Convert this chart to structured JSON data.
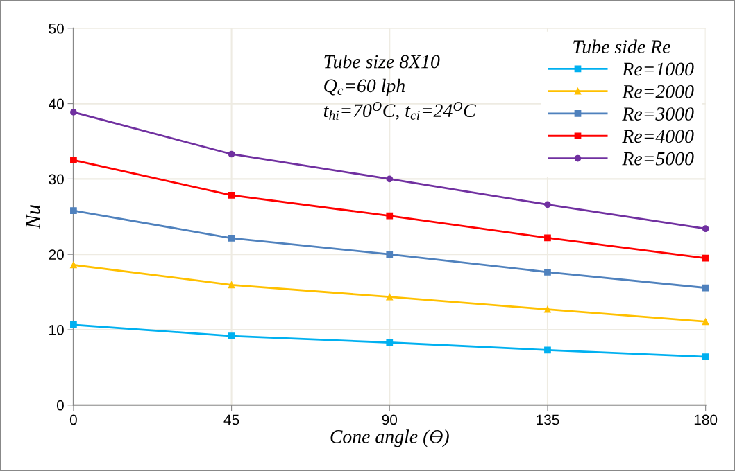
{
  "chart_data": {
    "type": "line",
    "xlabel": "Cone angle (Ө)",
    "ylabel": "Nu",
    "legend_title": "Tube side Re",
    "x": [
      0,
      45,
      90,
      135,
      180
    ],
    "series": [
      {
        "name": "Re=1000",
        "color": "#00b0f0",
        "marker": "square",
        "values": [
          10.65,
          9.17,
          8.3,
          7.3,
          6.4
        ]
      },
      {
        "name": "Re=2000",
        "color": "#ffc000",
        "marker": "triangle",
        "values": [
          18.6,
          15.95,
          14.35,
          12.7,
          11.07
        ]
      },
      {
        "name": "Re=3000",
        "color": "#4f81bd",
        "marker": "square",
        "values": [
          25.8,
          22.15,
          20.0,
          17.65,
          15.55
        ]
      },
      {
        "name": "Re=4000",
        "color": "#ff0000",
        "marker": "square",
        "values": [
          32.5,
          27.85,
          25.1,
          22.2,
          19.5
        ]
      },
      {
        "name": "Re=5000",
        "color": "#7030a0",
        "marker": "circle",
        "values": [
          38.87,
          33.3,
          30.0,
          26.6,
          23.4
        ]
      }
    ],
    "xlim": [
      0,
      180
    ],
    "xticks": [
      0,
      45,
      90,
      135,
      180
    ],
    "ylim": [
      0,
      50
    ],
    "yticks": [
      0,
      10,
      20,
      30,
      40,
      50
    ],
    "grid": true,
    "legend": "top right",
    "line_style": "solid",
    "annotations": [
      "Tube size 8X10",
      "Q$_{c}$=60 lph",
      "t$_{hi}$=70$^{O}$C, t$_{ci}$=24$^{O}$C"
    ]
  }
}
